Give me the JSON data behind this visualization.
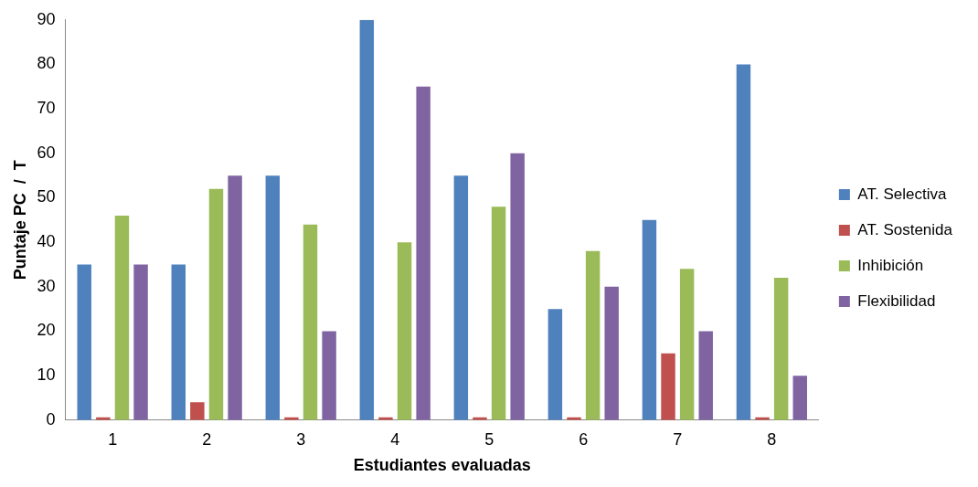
{
  "chart_data": {
    "type": "bar",
    "xlabel": "Estudiantes evaluadas",
    "ylabel": "Puntaje PC  /  T",
    "categories": [
      "1",
      "2",
      "3",
      "4",
      "5",
      "6",
      "7",
      "8"
    ],
    "series": [
      {
        "name": "AT. Selectiva",
        "color": "#4f81bd",
        "values": [
          35,
          35,
          55,
          90,
          55,
          25,
          45,
          80
        ]
      },
      {
        "name": "AT. Sostenida",
        "color": "#c0504d",
        "values": [
          0,
          4,
          0,
          0,
          0,
          0,
          15,
          0
        ]
      },
      {
        "name": "Inhibición",
        "color": "#9bbb59",
        "values": [
          46,
          52,
          44,
          40,
          48,
          38,
          34,
          32
        ]
      },
      {
        "name": "Flexibilidad",
        "color": "#8064a2",
        "values": [
          35,
          55,
          20,
          75,
          60,
          30,
          20,
          10
        ]
      }
    ],
    "ylim": [
      0,
      90
    ],
    "yticks": [
      0,
      10,
      20,
      30,
      40,
      50,
      60,
      70,
      80,
      90
    ],
    "grid": false,
    "legend": "right"
  }
}
